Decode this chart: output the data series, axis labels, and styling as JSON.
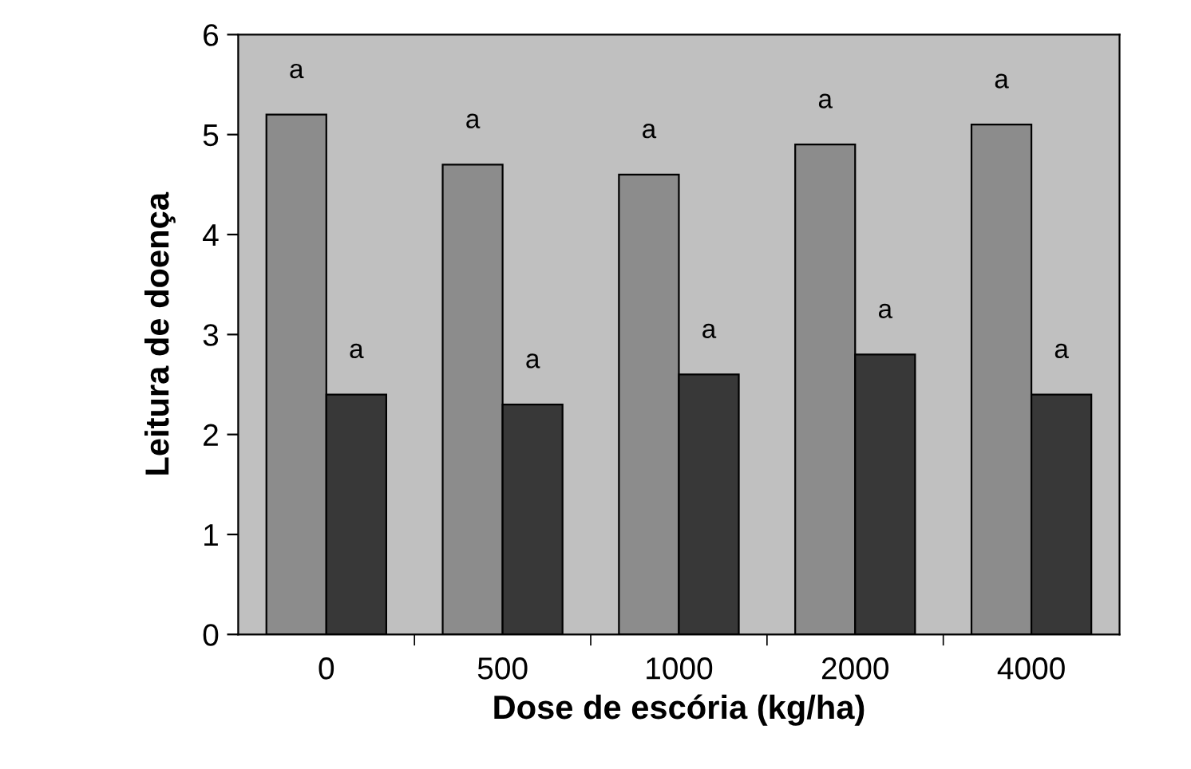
{
  "chart_data": {
    "type": "bar",
    "xlabel": "Dose de escória (kg/ha)",
    "ylabel": "Leitura de doença",
    "categories": [
      "0",
      "500",
      "1000",
      "2000",
      "4000"
    ],
    "series": [
      {
        "color": "#8c8c8c",
        "values": [
          5.2,
          4.7,
          4.6,
          4.9,
          5.1
        ],
        "value_labels": [
          "a",
          "a",
          "a",
          "a",
          "a"
        ]
      },
      {
        "color": "#383838",
        "values": [
          2.4,
          2.3,
          2.6,
          2.8,
          2.4
        ],
        "value_labels": [
          "a",
          "a",
          "a",
          "a",
          "a"
        ]
      }
    ],
    "ylim": [
      0,
      6
    ],
    "yticks": [
      0,
      1,
      2,
      3,
      4,
      5,
      6
    ],
    "grid": false
  }
}
